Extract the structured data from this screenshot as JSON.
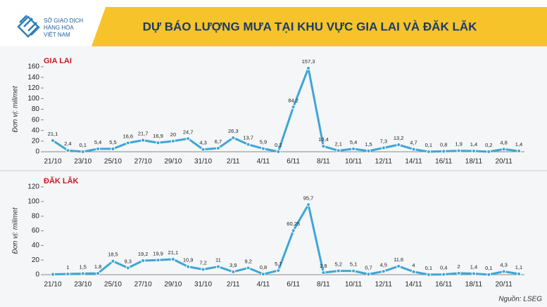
{
  "header": {
    "logo_lines": [
      "SỞ GIAO DỊCH",
      "HÀNG HÓA",
      "VIỆT NAM"
    ],
    "title": "DỰ BÁO LƯỢNG MƯA TẠI KHU VỰC GIA LAI VÀ ĐĂK LĂK"
  },
  "chart_data": [
    {
      "type": "line",
      "title": "GIA LAI",
      "y_label": "Đơn vị: milimet",
      "categories": [
        "21/10",
        null,
        "23/10",
        null,
        "25/10",
        null,
        "27/10",
        null,
        "29/10",
        null,
        "31/10",
        null,
        "2/11",
        null,
        "4/11",
        null,
        "6/11",
        null,
        "8/11",
        null,
        "10/11",
        null,
        "12/11",
        null,
        "14/11",
        null,
        "16/11",
        null,
        "18/11",
        null,
        "20/11",
        null
      ],
      "values": [
        21.1,
        2.4,
        0.1,
        5.4,
        5.5,
        16.6,
        21.7,
        16.9,
        20,
        24.7,
        4.3,
        6.7,
        26.3,
        13.7,
        5.9,
        0.2,
        84.2,
        157.3,
        10.4,
        2.1,
        5.4,
        1.5,
        7.3,
        13.2,
        4.7,
        0.1,
        0.8,
        1.9,
        1.4,
        0.2,
        4.8,
        1.4
      ],
      "value_labels": [
        "21,1",
        "2,4",
        "0,1",
        "5,4",
        "5,5",
        "16,6",
        "21,7",
        "16,9",
        "20",
        "24,7",
        "4,3",
        "6,7",
        "26,3",
        "13,7",
        "5,9",
        "0,2",
        "84,2",
        "157,3",
        "10,4",
        "2,1",
        "5,4",
        "1,5",
        "7,3",
        "13,2",
        "4,7",
        "0,1",
        "0,8",
        "1,9",
        "1,4",
        "0,2",
        "4,8",
        "1,4"
      ],
      "color": "#3fa6d6",
      "ylim": [
        0,
        160
      ],
      "yticks": [
        0,
        20,
        40,
        60,
        80,
        100,
        120,
        140,
        160
      ]
    },
    {
      "type": "line",
      "title": "ĐĂK LĂK",
      "y_label": "Đơn vị: milimet",
      "categories": [
        "21/10",
        null,
        "23/10",
        null,
        "25/10",
        null,
        "27/10",
        null,
        "29/10",
        null,
        "31/10",
        null,
        "2/11",
        null,
        "4/11",
        null,
        "6/11",
        null,
        "8/11",
        null,
        "10/11",
        null,
        "12/11",
        null,
        "14/11",
        null,
        "16/11",
        null,
        "18/11",
        null,
        "20/11",
        null
      ],
      "values": [
        0.5,
        1,
        1.5,
        1.8,
        18.5,
        9.3,
        19.2,
        19.9,
        21.1,
        10.9,
        7.2,
        11,
        3.9,
        9.2,
        0.8,
        5.7,
        60.25,
        95.7,
        2.8,
        5.2,
        5.1,
        0.7,
        4.5,
        11.6,
        4,
        0.1,
        0.4,
        2,
        1.4,
        0.1,
        4.3,
        1.1
      ],
      "value_labels": [
        null,
        "1",
        "1,5",
        "1,8",
        "18,5",
        "9,3",
        "19,2",
        "19,9",
        "21,1",
        "10,9",
        "7,2",
        "11",
        "3,9",
        "9,2",
        "0,8",
        "5,7",
        "60,25",
        "95,7",
        "2,8",
        "5,2",
        "5,1",
        "0,7",
        "4,5",
        "11,6",
        "4",
        "0,1",
        "0,4",
        "2",
        "1,4",
        "0,1",
        "4,3",
        "1,1"
      ],
      "color": "#3fa6d6",
      "ylim": [
        0,
        120
      ],
      "yticks": [
        0,
        20,
        40,
        60,
        80,
        100,
        120
      ]
    }
  ],
  "source": "Nguồn: LSEG"
}
